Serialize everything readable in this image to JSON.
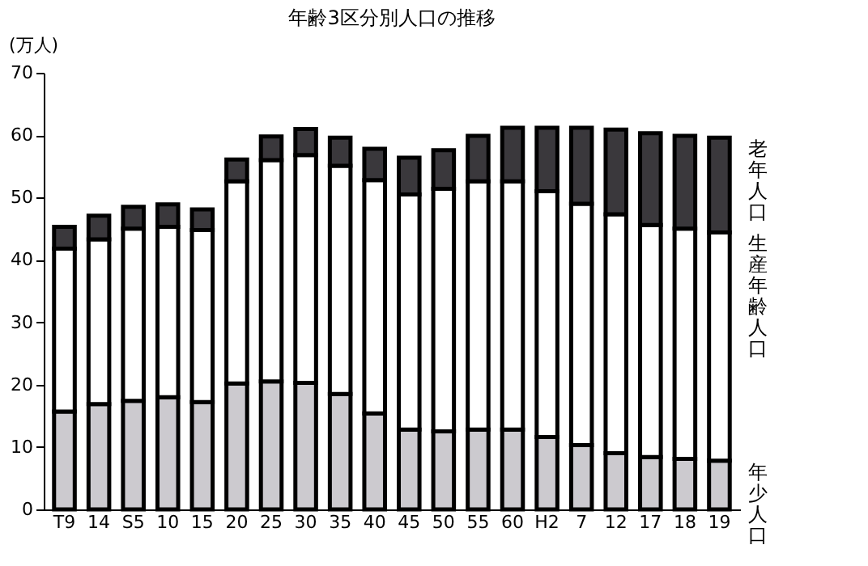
{
  "chart_data": {
    "type": "bar",
    "stacked": true,
    "title": "年齢3区分別人口の推移",
    "ylabel": "(万人)",
    "categories": [
      "T9",
      "14",
      "S5",
      "10",
      "15",
      "20",
      "25",
      "30",
      "35",
      "40",
      "45",
      "50",
      "55",
      "60",
      "H2",
      "7",
      "12",
      "17",
      "18",
      "19"
    ],
    "series": [
      {
        "name": "年少人口",
        "color": "#cccacf",
        "values": [
          15.7,
          16.9,
          17.4,
          18.0,
          17.2,
          20.2,
          20.5,
          20.3,
          18.5,
          15.4,
          12.8,
          12.5,
          12.8,
          12.8,
          11.6,
          10.3,
          9.0,
          8.4,
          8.1,
          7.8
        ]
      },
      {
        "name": "生産年齢人口",
        "color": "#ffffff",
        "values": [
          26.1,
          26.4,
          27.6,
          27.3,
          27.6,
          32.4,
          35.5,
          36.5,
          36.6,
          37.4,
          37.7,
          38.9,
          39.8,
          39.8,
          39.4,
          38.7,
          38.3,
          37.2,
          36.9,
          36.6
        ]
      },
      {
        "name": "老年人口",
        "color": "#3a383c",
        "values": [
          3.5,
          3.8,
          3.5,
          3.6,
          3.3,
          3.5,
          3.8,
          4.2,
          4.5,
          5.0,
          5.9,
          6.2,
          7.3,
          8.6,
          10.2,
          12.2,
          13.6,
          14.7,
          14.9,
          15.2
        ]
      }
    ],
    "ylim": [
      0,
      70
    ],
    "yticks": [
      0,
      10,
      20,
      30,
      40,
      50,
      60,
      70
    ],
    "grid": false,
    "legend": false
  }
}
